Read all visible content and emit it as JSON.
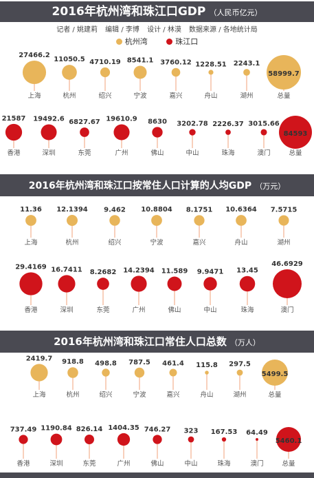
{
  "colors": {
    "hangzhou": "#E8B55A",
    "pearl": "#D0141B",
    "header": "#4A4A52",
    "stem": "#F2A27A"
  },
  "credits": [
    "记者 / 姚建莉",
    "编辑 / 李博",
    "设计 / 林漠",
    "数据来源 / 各地统计局"
  ],
  "legend": {
    "hangzhou_bay": "杭州湾",
    "pearl_river": "珠江口"
  },
  "chart_data": [
    {
      "type": "bubble",
      "title": "2016年杭州湾和珠江口GDP",
      "unit": "（人民币亿元）",
      "series": [
        {
          "name": "杭州湾",
          "categories": [
            "上海",
            "杭州",
            "绍兴",
            "宁波",
            "嘉兴",
            "舟山",
            "湖州",
            "总量"
          ],
          "values": [
            27466.2,
            11050.5,
            4710.19,
            8541.1,
            3760.12,
            1228.51,
            2243.1,
            58999.7
          ],
          "labels": [
            "27466.2",
            "11050.5",
            "4710.19",
            "8541.1",
            "3760.12",
            "1228.51",
            "2243.1",
            "58999.7"
          ]
        },
        {
          "name": "珠江口",
          "categories": [
            "香港",
            "深圳",
            "东莞",
            "广州",
            "佛山",
            "中山",
            "珠海",
            "澳门",
            "总量"
          ],
          "values": [
            21587,
            19492.6,
            6827.67,
            19610.9,
            8630,
            3202.78,
            2226.37,
            3015.66,
            84593
          ],
          "labels": [
            "21587",
            "19492.6",
            "6827.67",
            "19610.9",
            "8630",
            "3202.78",
            "2226.37",
            "3015.66",
            "84593"
          ]
        }
      ]
    },
    {
      "type": "bubble",
      "title": "2016年杭州湾和珠江口按常住人口计算的人均GDP",
      "unit": "（万元）",
      "series": [
        {
          "name": "杭州湾",
          "categories": [
            "上海",
            "杭州",
            "绍兴",
            "宁波",
            "嘉兴",
            "舟山",
            "湖州"
          ],
          "values": [
            11.36,
            12.1394,
            9.462,
            10.8804,
            8.1751,
            10.6364,
            7.5715
          ],
          "labels": [
            "11.36",
            "12.1394",
            "9.462",
            "10.8804",
            "8.1751",
            "10.6364",
            "7.5715"
          ]
        },
        {
          "name": "珠江口",
          "categories": [
            "香港",
            "深圳",
            "东莞",
            "广州",
            "佛山",
            "中山",
            "珠海",
            "澳门"
          ],
          "values": [
            29.4169,
            16.7411,
            8.2682,
            14.2394,
            11.589,
            9.9471,
            13.45,
            46.6929
          ],
          "labels": [
            "29.4169",
            "16.7411",
            "8.2682",
            "14.2394",
            "11.589",
            "9.9471",
            "13.45",
            "46.6929"
          ]
        }
      ]
    },
    {
      "type": "bubble",
      "title": "2016年杭州湾和珠江口常住人口总数",
      "unit": "（万人）",
      "series": [
        {
          "name": "杭州湾",
          "categories": [
            "上海",
            "杭州",
            "绍兴",
            "宁波",
            "嘉兴",
            "舟山",
            "湖州",
            "总量"
          ],
          "values": [
            2419.7,
            918.8,
            498.8,
            787.5,
            461.4,
            115.8,
            297.5,
            5499.5
          ],
          "labels": [
            "2419.7",
            "918.8",
            "498.8",
            "787.5",
            "461.4",
            "115.8",
            "297.5",
            "5499.5"
          ]
        },
        {
          "name": "珠江口",
          "categories": [
            "香港",
            "深圳",
            "东莞",
            "广州",
            "佛山",
            "中山",
            "珠海",
            "澳门",
            "总量"
          ],
          "values": [
            737.49,
            1190.84,
            826.14,
            1404.35,
            746.27,
            323,
            167.53,
            64.49,
            5460.1
          ],
          "labels": [
            "737.49",
            "1190.84",
            "826.14",
            "1404.35",
            "746.27",
            "323",
            "167.53",
            "64.49",
            "5460.1"
          ]
        }
      ]
    }
  ]
}
